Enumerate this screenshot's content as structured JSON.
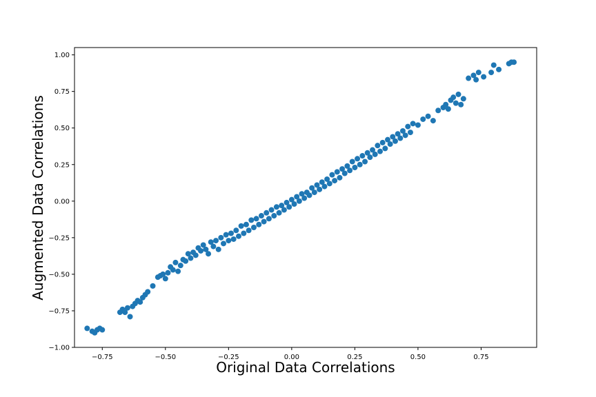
{
  "chart_data": {
    "type": "scatter",
    "title": "",
    "xlabel": "Original Data Correlations",
    "ylabel": "Augmented Data Correlations",
    "xlim": [
      -0.86,
      0.97
    ],
    "ylim": [
      -1.0,
      1.05
    ],
    "xticks": [
      -0.75,
      -0.5,
      -0.25,
      0.0,
      0.25,
      0.5,
      0.75
    ],
    "xtick_labels": [
      "−0.75",
      "−0.50",
      "−0.25",
      "0.00",
      "0.25",
      "0.50",
      "0.75"
    ],
    "yticks": [
      -1.0,
      -0.75,
      -0.5,
      -0.25,
      0.0,
      0.25,
      0.5,
      0.75,
      1.0
    ],
    "ytick_labels": [
      "−1.00",
      "−0.75",
      "−0.50",
      "−0.25",
      "0.00",
      "0.25",
      "0.50",
      "0.75",
      "1.00"
    ],
    "grid": false,
    "legend": null,
    "marker_color": "#1f77b4",
    "series": [
      {
        "points": [
          [
            -0.81,
            -0.87
          ],
          [
            -0.79,
            -0.89
          ],
          [
            -0.78,
            -0.9
          ],
          [
            -0.77,
            -0.88
          ],
          [
            -0.76,
            -0.87
          ],
          [
            -0.75,
            -0.88
          ],
          [
            -0.68,
            -0.76
          ],
          [
            -0.67,
            -0.74
          ],
          [
            -0.66,
            -0.76
          ],
          [
            -0.65,
            -0.73
          ],
          [
            -0.64,
            -0.79
          ],
          [
            -0.63,
            -0.72
          ],
          [
            -0.62,
            -0.7
          ],
          [
            -0.61,
            -0.68
          ],
          [
            -0.6,
            -0.69
          ],
          [
            -0.59,
            -0.66
          ],
          [
            -0.58,
            -0.64
          ],
          [
            -0.57,
            -0.62
          ],
          [
            -0.55,
            -0.58
          ],
          [
            -0.53,
            -0.52
          ],
          [
            -0.52,
            -0.51
          ],
          [
            -0.51,
            -0.5
          ],
          [
            -0.5,
            -0.53
          ],
          [
            -0.49,
            -0.49
          ],
          [
            -0.48,
            -0.45
          ],
          [
            -0.47,
            -0.47
          ],
          [
            -0.46,
            -0.42
          ],
          [
            -0.45,
            -0.48
          ],
          [
            -0.44,
            -0.44
          ],
          [
            -0.43,
            -0.4
          ],
          [
            -0.42,
            -0.41
          ],
          [
            -0.41,
            -0.36
          ],
          [
            -0.4,
            -0.39
          ],
          [
            -0.39,
            -0.35
          ],
          [
            -0.38,
            -0.37
          ],
          [
            -0.37,
            -0.32
          ],
          [
            -0.36,
            -0.34
          ],
          [
            -0.35,
            -0.3
          ],
          [
            -0.34,
            -0.33
          ],
          [
            -0.33,
            -0.36
          ],
          [
            -0.32,
            -0.28
          ],
          [
            -0.31,
            -0.31
          ],
          [
            -0.3,
            -0.27
          ],
          [
            -0.29,
            -0.33
          ],
          [
            -0.28,
            -0.25
          ],
          [
            -0.27,
            -0.29
          ],
          [
            -0.26,
            -0.23
          ],
          [
            -0.25,
            -0.27
          ],
          [
            -0.24,
            -0.22
          ],
          [
            -0.23,
            -0.26
          ],
          [
            -0.22,
            -0.2
          ],
          [
            -0.21,
            -0.24
          ],
          [
            -0.2,
            -0.17
          ],
          [
            -0.19,
            -0.22
          ],
          [
            -0.18,
            -0.16
          ],
          [
            -0.17,
            -0.2
          ],
          [
            -0.16,
            -0.13
          ],
          [
            -0.15,
            -0.18
          ],
          [
            -0.14,
            -0.12
          ],
          [
            -0.13,
            -0.16
          ],
          [
            -0.12,
            -0.1
          ],
          [
            -0.11,
            -0.14
          ],
          [
            -0.1,
            -0.08
          ],
          [
            -0.09,
            -0.12
          ],
          [
            -0.08,
            -0.06
          ],
          [
            -0.07,
            -0.1
          ],
          [
            -0.06,
            -0.04
          ],
          [
            -0.05,
            -0.08
          ],
          [
            -0.04,
            -0.03
          ],
          [
            -0.03,
            -0.06
          ],
          [
            -0.02,
            -0.01
          ],
          [
            -0.01,
            -0.04
          ],
          [
            0.0,
            0.01
          ],
          [
            0.01,
            -0.02
          ],
          [
            0.02,
            0.03
          ],
          [
            0.03,
            0.0
          ],
          [
            0.04,
            0.05
          ],
          [
            0.05,
            0.02
          ],
          [
            0.06,
            0.06
          ],
          [
            0.07,
            0.04
          ],
          [
            0.08,
            0.09
          ],
          [
            0.09,
            0.06
          ],
          [
            0.1,
            0.11
          ],
          [
            0.11,
            0.08
          ],
          [
            0.12,
            0.13
          ],
          [
            0.13,
            0.1
          ],
          [
            0.14,
            0.15
          ],
          [
            0.15,
            0.12
          ],
          [
            0.16,
            0.18
          ],
          [
            0.17,
            0.14
          ],
          [
            0.18,
            0.2
          ],
          [
            0.19,
            0.16
          ],
          [
            0.2,
            0.22
          ],
          [
            0.21,
            0.19
          ],
          [
            0.22,
            0.24
          ],
          [
            0.23,
            0.21
          ],
          [
            0.24,
            0.27
          ],
          [
            0.25,
            0.23
          ],
          [
            0.26,
            0.29
          ],
          [
            0.27,
            0.25
          ],
          [
            0.28,
            0.31
          ],
          [
            0.29,
            0.27
          ],
          [
            0.3,
            0.33
          ],
          [
            0.31,
            0.3
          ],
          [
            0.32,
            0.35
          ],
          [
            0.33,
            0.32
          ],
          [
            0.34,
            0.38
          ],
          [
            0.35,
            0.34
          ],
          [
            0.36,
            0.4
          ],
          [
            0.37,
            0.36
          ],
          [
            0.38,
            0.42
          ],
          [
            0.39,
            0.39
          ],
          [
            0.4,
            0.44
          ],
          [
            0.41,
            0.41
          ],
          [
            0.42,
            0.46
          ],
          [
            0.43,
            0.43
          ],
          [
            0.44,
            0.48
          ],
          [
            0.45,
            0.45
          ],
          [
            0.46,
            0.51
          ],
          [
            0.47,
            0.47
          ],
          [
            0.48,
            0.53
          ],
          [
            0.5,
            0.52
          ],
          [
            0.52,
            0.56
          ],
          [
            0.54,
            0.58
          ],
          [
            0.56,
            0.55
          ],
          [
            0.58,
            0.62
          ],
          [
            0.6,
            0.64
          ],
          [
            0.61,
            0.66
          ],
          [
            0.62,
            0.63
          ],
          [
            0.63,
            0.69
          ],
          [
            0.64,
            0.71
          ],
          [
            0.65,
            0.67
          ],
          [
            0.66,
            0.73
          ],
          [
            0.67,
            0.66
          ],
          [
            0.68,
            0.7
          ],
          [
            0.7,
            0.84
          ],
          [
            0.72,
            0.86
          ],
          [
            0.73,
            0.83
          ],
          [
            0.74,
            0.88
          ],
          [
            0.76,
            0.85
          ],
          [
            0.79,
            0.88
          ],
          [
            0.8,
            0.93
          ],
          [
            0.82,
            0.9
          ],
          [
            0.86,
            0.94
          ],
          [
            0.87,
            0.95
          ],
          [
            0.88,
            0.95
          ]
        ]
      }
    ]
  }
}
